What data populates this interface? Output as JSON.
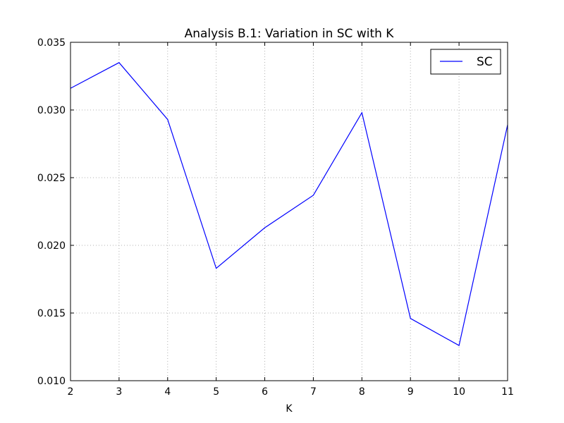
{
  "chart_data": {
    "type": "line",
    "title": "Analysis B.1: Variation in SC with K",
    "xlabel": "K",
    "ylabel": "",
    "x": [
      2,
      3,
      4,
      5,
      6,
      7,
      8,
      9,
      10,
      11
    ],
    "series": [
      {
        "name": "SC",
        "color": "#0000ff",
        "values": [
          0.0316,
          0.0335,
          0.0293,
          0.0183,
          0.0213,
          0.0237,
          0.0298,
          0.0146,
          0.0126,
          0.0289
        ]
      }
    ],
    "xlim": [
      2,
      11
    ],
    "ylim": [
      0.01,
      0.035
    ],
    "xticks": [
      "2",
      "3",
      "4",
      "5",
      "6",
      "7",
      "8",
      "9",
      "10",
      "11"
    ],
    "yticks": [
      "0.010",
      "0.015",
      "0.020",
      "0.025",
      "0.030",
      "0.035"
    ],
    "grid": true,
    "legend_position": "top-right"
  }
}
